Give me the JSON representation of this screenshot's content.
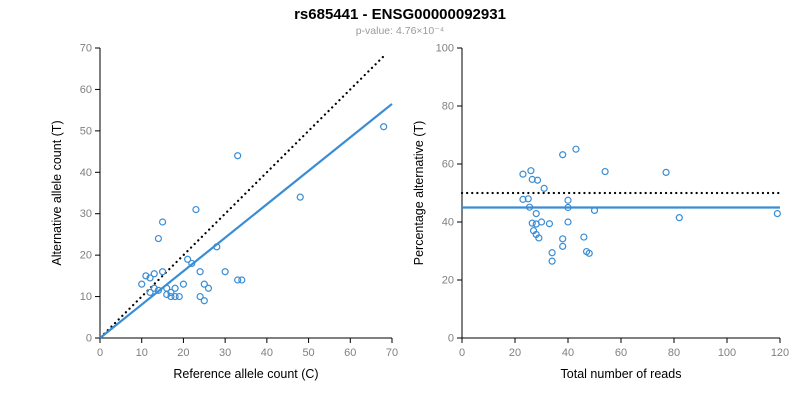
{
  "header": {
    "title": "rs685441 - ENSG00000092931",
    "subtitle": "p-value: 4.76×10⁻⁴"
  },
  "colors": {
    "point": "#3a8dd4",
    "regression": "#3a8dd4",
    "identity": "#000000",
    "tick_label": "#808080",
    "axis_label": "#000000"
  },
  "chart_data": [
    {
      "name": "allele-count-scatter",
      "type": "scatter",
      "xlabel": "Reference allele count (C)",
      "ylabel": "Alternative allele count (T)",
      "xlim": [
        0,
        70
      ],
      "ylim": [
        0,
        70
      ],
      "xticks": [
        0,
        10,
        20,
        30,
        40,
        50,
        60,
        70
      ],
      "yticks": [
        0,
        10,
        20,
        30,
        40,
        50,
        60,
        70
      ],
      "grid": false,
      "points": [
        [
          10,
          13
        ],
        [
          11,
          15
        ],
        [
          12,
          14.5
        ],
        [
          13,
          15.5
        ],
        [
          12,
          11
        ],
        [
          13,
          12
        ],
        [
          14,
          11.5
        ],
        [
          14,
          24
        ],
        [
          15,
          28
        ],
        [
          15,
          16
        ],
        [
          16,
          12
        ],
        [
          16,
          10.5
        ],
        [
          17,
          10
        ],
        [
          17,
          11
        ],
        [
          18,
          10
        ],
        [
          18,
          12
        ],
        [
          19,
          10
        ],
        [
          20,
          13
        ],
        [
          21,
          19
        ],
        [
          22,
          18
        ],
        [
          23,
          31
        ],
        [
          24,
          16
        ],
        [
          24,
          10
        ],
        [
          25,
          13
        ],
        [
          25,
          9
        ],
        [
          26,
          12
        ],
        [
          28,
          22
        ],
        [
          30,
          16
        ],
        [
          33,
          44
        ],
        [
          33,
          14
        ],
        [
          34,
          14
        ],
        [
          48,
          34
        ],
        [
          68,
          51
        ]
      ],
      "lines": [
        {
          "name": "identity-line",
          "style": "dotted",
          "color": "#000000",
          "x": [
            1,
            68
          ],
          "y": [
            1,
            68
          ]
        },
        {
          "name": "regression-line",
          "style": "solid",
          "color": "#3a8dd4",
          "x": [
            0,
            70
          ],
          "y": [
            0,
            56.5
          ]
        }
      ]
    },
    {
      "name": "percentage-alternative-scatter",
      "type": "scatter",
      "xlabel": "Total number of reads",
      "ylabel": "Percentage alternative (T)",
      "xlim": [
        0,
        120
      ],
      "ylim": [
        0,
        100
      ],
      "xticks": [
        0,
        20,
        40,
        60,
        80,
        100,
        120
      ],
      "yticks": [
        0,
        20,
        40,
        60,
        80,
        100
      ],
      "grid": false,
      "points": [
        [
          23,
          56.5
        ],
        [
          26,
          57.7
        ],
        [
          26.5,
          54.7
        ],
        [
          28.5,
          54.4
        ],
        [
          23,
          47.8
        ],
        [
          25,
          48
        ],
        [
          25.5,
          45.1
        ],
        [
          38,
          63.2
        ],
        [
          43,
          65.1
        ],
        [
          31,
          51.6
        ],
        [
          28,
          42.9
        ],
        [
          26.5,
          39.6
        ],
        [
          27,
          37
        ],
        [
          28,
          39.3
        ],
        [
          28,
          35.7
        ],
        [
          30,
          40
        ],
        [
          29,
          34.5
        ],
        [
          33,
          39.4
        ],
        [
          40,
          47.5
        ],
        [
          40,
          45
        ],
        [
          54,
          57.4
        ],
        [
          40,
          40
        ],
        [
          34,
          29.4
        ],
        [
          38,
          34.2
        ],
        [
          34,
          26.5
        ],
        [
          38,
          31.6
        ],
        [
          50,
          44
        ],
        [
          46,
          34.8
        ],
        [
          77,
          57.1
        ],
        [
          47,
          29.8
        ],
        [
          48,
          29.2
        ],
        [
          82,
          41.5
        ],
        [
          119,
          42.9
        ]
      ],
      "lines": [
        {
          "name": "expected-50pct-line",
          "style": "dotted",
          "color": "#000000",
          "x": [
            0,
            120
          ],
          "y": [
            50,
            50
          ]
        },
        {
          "name": "mean-percentage-line",
          "style": "solid",
          "color": "#3a8dd4",
          "x": [
            0,
            120
          ],
          "y": [
            45,
            45
          ]
        }
      ]
    }
  ]
}
